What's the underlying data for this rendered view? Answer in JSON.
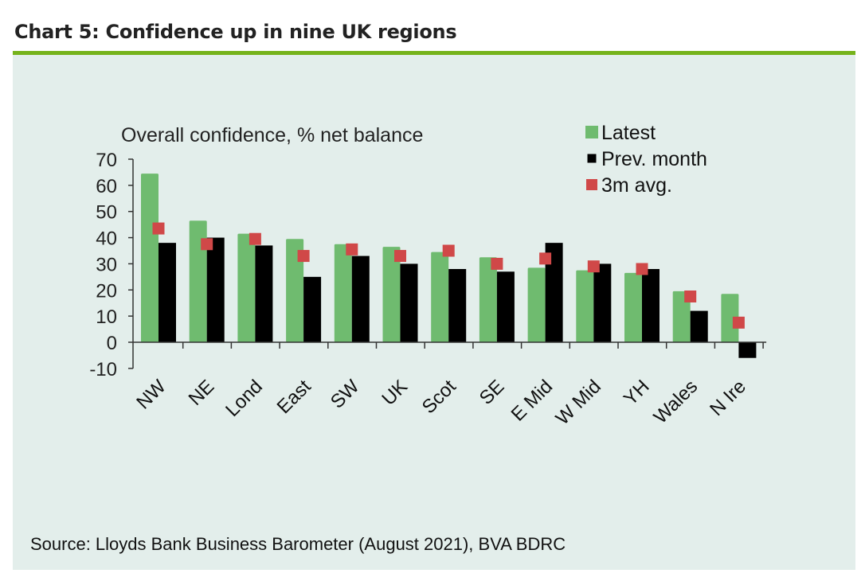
{
  "page": {
    "title": "Chart 5: Confidence up in nine UK regions",
    "source": "Source: Lloyds Bank Business Barometer (August 2021), BVA BDRC"
  },
  "colors": {
    "accent_rule": "#76b31b",
    "panel_bg": "#e3eeeb",
    "latest": "#6fbb6f",
    "prev_month": "#000000",
    "avg3m": "#d04848"
  },
  "chart_data": {
    "type": "bar",
    "title": "Overall confidence, % net balance",
    "xlabel": "",
    "ylabel": "Overall confidence, % net balance",
    "ylim": [
      -10,
      70
    ],
    "yticks": [
      70,
      60,
      50,
      40,
      30,
      20,
      10,
      0,
      -10
    ],
    "ytick_labels": [
      "70",
      "60",
      "50",
      "40",
      "30",
      "20",
      "10",
      "0",
      "-10"
    ],
    "grid": false,
    "legend_position": "top-right",
    "categories": [
      "NW",
      "NE",
      "Lond",
      "East",
      "SW",
      "UK",
      "Scot",
      "SE",
      "E Mid",
      "W Mid",
      "YH",
      "Wales",
      "N Ire"
    ],
    "series": [
      {
        "name": "Latest",
        "kind": "bar",
        "color": "#6fbb6f",
        "values": [
          64.5,
          46.5,
          41.5,
          39.5,
          37.5,
          36.5,
          34.5,
          32.5,
          28.5,
          27.5,
          26.5,
          19.5,
          18.5
        ]
      },
      {
        "name": "Prev. month",
        "kind": "bar",
        "color": "#000000",
        "values": [
          38,
          40,
          37,
          25,
          33,
          30,
          28,
          27,
          38,
          30,
          28,
          12,
          -6
        ]
      },
      {
        "name": "3m avg.",
        "kind": "marker",
        "color": "#d04848",
        "values": [
          43.5,
          37.5,
          39.5,
          33,
          35.5,
          33,
          35,
          30,
          32,
          29,
          28,
          17.5,
          7.5
        ]
      }
    ]
  }
}
